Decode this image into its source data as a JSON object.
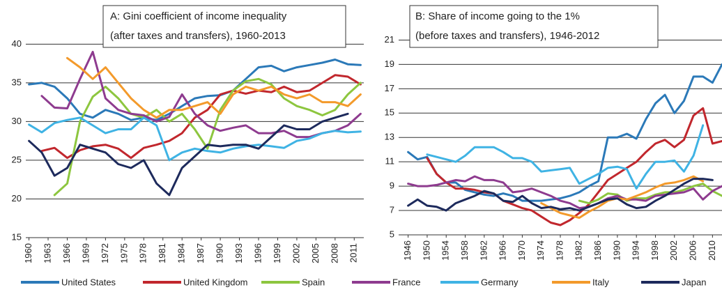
{
  "chart_data": [
    {
      "type": "line",
      "title": [
        "A: Gini coefficient of income inequality",
        "(after taxes and transfers), 1960-2013"
      ],
      "x": [
        1960,
        1962,
        1964,
        1966,
        1968,
        1970,
        1972,
        1974,
        1976,
        1978,
        1980,
        1982,
        1984,
        1986,
        1988,
        1990,
        1992,
        1994,
        1996,
        1998,
        2000,
        2002,
        2004,
        2006,
        2008,
        2010,
        2012
      ],
      "xlim": [
        1959.5,
        2012.5
      ],
      "xticks": [
        1960,
        1963,
        1966,
        1969,
        1972,
        1975,
        1978,
        1981,
        1984,
        1987,
        1990,
        1993,
        1996,
        1999,
        2002,
        2005,
        2008,
        2011
      ],
      "ylim": [
        15,
        43
      ],
      "yticks": [
        15,
        20,
        25,
        30,
        35,
        40
      ],
      "grid": true,
      "series": [
        {
          "name": "United States",
          "color": "#2b79b8",
          "values": [
            34.8,
            35,
            34.5,
            33,
            31,
            30.5,
            31.5,
            31,
            30.2,
            30.5,
            30.2,
            31,
            32,
            33,
            33.3,
            33.4,
            34,
            35.5,
            37,
            37.2,
            36.5,
            37,
            37.3,
            37.6,
            38,
            37.4,
            37.3
          ]
        },
        {
          "name": "United Kingdom",
          "color": "#c1272d",
          "values": [
            null,
            26.2,
            26.6,
            25.3,
            26.3,
            26.8,
            27,
            26.5,
            25.3,
            26.6,
            27,
            27.5,
            28.5,
            30.5,
            31.5,
            33.5,
            34,
            33.6,
            34,
            33.8,
            34.5,
            33.8,
            34,
            35,
            36,
            35.8,
            34.8
          ]
        },
        {
          "name": "Spain",
          "color": "#8dc63f",
          "values": [
            null,
            null,
            20.5,
            22,
            30,
            33.2,
            34.5,
            33,
            31,
            30.5,
            31.5,
            30,
            31,
            29,
            26.5,
            31.5,
            34,
            35.2,
            35.5,
            34.8,
            33,
            32,
            31.5,
            30.8,
            31.5,
            33.5,
            35
          ]
        },
        {
          "name": "France",
          "color": "#8e3b8f",
          "values": [
            null,
            33.3,
            31.8,
            31.7,
            35.5,
            39,
            33,
            31.5,
            31,
            30.8,
            30,
            30.6,
            33.5,
            31,
            29.5,
            28.8,
            29.2,
            29.5,
            28.5,
            28.5,
            28.8,
            28,
            28,
            28.5,
            28.8,
            29.5,
            31
          ]
        },
        {
          "name": "Germany",
          "color": "#3fb3e4",
          "values": [
            29.6,
            28.6,
            29.8,
            30.2,
            30.5,
            29.5,
            28.5,
            29,
            29,
            30.5,
            29.5,
            25,
            26,
            26.5,
            26.2,
            26,
            26.5,
            26.8,
            27,
            26.8,
            26.6,
            27.5,
            27.8,
            28.5,
            28.8,
            28.6,
            28.7
          ]
        },
        {
          "name": "Italy",
          "color": "#f39a2b",
          "values": [
            null,
            null,
            null,
            38.2,
            37,
            35.5,
            37,
            35,
            33,
            31.5,
            30.5,
            31.5,
            31.5,
            32,
            32.5,
            31,
            33.5,
            34.5,
            34,
            34.5,
            33.5,
            33,
            33.5,
            32.5,
            32.5,
            32,
            33.5
          ]
        },
        {
          "name": "Japan",
          "color": "#1d2a5c",
          "values": [
            27.5,
            26,
            23,
            24,
            27,
            26.5,
            26,
            24.5,
            24,
            25,
            22,
            20.5,
            24,
            25.5,
            27,
            26.8,
            27,
            27,
            26.5,
            28,
            29.5,
            29,
            29,
            30,
            30.5,
            31,
            null
          ]
        }
      ]
    },
    {
      "type": "line",
      "title": [
        "B: Share of income going to the 1%",
        "(before taxes and transfers), 1946-2012"
      ],
      "x": [
        1946,
        1948,
        1950,
        1952,
        1954,
        1956,
        1958,
        1960,
        1962,
        1964,
        1966,
        1968,
        1970,
        1972,
        1974,
        1976,
        1978,
        1980,
        1982,
        1984,
        1986,
        1988,
        1990,
        1992,
        1994,
        1996,
        1998,
        2000,
        2002,
        2004,
        2006,
        2008,
        2010,
        2012
      ],
      "xlim": [
        1944,
        2012
      ],
      "xticks": [
        1946,
        1950,
        1954,
        1958,
        1962,
        1966,
        1970,
        1974,
        1978,
        1982,
        1986,
        1990,
        1994,
        1998,
        2002,
        2006,
        2010
      ],
      "ylim": [
        5,
        22
      ],
      "yticks": [
        5,
        7,
        9,
        11,
        13,
        15,
        17,
        19,
        21
      ],
      "grid": true,
      "series": [
        {
          "color": "#2b79b8",
          "values": [
            11.8,
            11.2,
            11.4,
            10,
            9.3,
            9.3,
            8.7,
            8.5,
            8.3,
            8.2,
            8.4,
            8.2,
            7.8,
            7.8,
            7.8,
            7.9,
            8,
            8.2,
            8.5,
            9,
            9.4,
            13,
            13,
            13.3,
            12.9,
            14.5,
            15.8,
            16.5,
            15,
            16,
            18,
            18,
            17.5,
            19
          ]
        },
        {
          "color": "#c1272d",
          "values": [
            null,
            null,
            11.3,
            10,
            9.3,
            8.8,
            8.8,
            8.7,
            8.5,
            8.4,
            7.8,
            7.5,
            7.2,
            7,
            6.5,
            6,
            5.8,
            6.2,
            6.8,
            7.5,
            8.5,
            9.5,
            10,
            10.5,
            11,
            11.8,
            12.5,
            12.8,
            12.2,
            12.8,
            14.8,
            15.4,
            12.5,
            12.7
          ]
        },
        {
          "color": "#8dc63f",
          "values": [
            null,
            null,
            null,
            null,
            null,
            null,
            null,
            null,
            null,
            null,
            null,
            null,
            null,
            null,
            null,
            null,
            null,
            null,
            7.8,
            7.6,
            7.9,
            8.4,
            8.3,
            7.8,
            8,
            8,
            8.3,
            8.5,
            8.5,
            8.7,
            9,
            9.2,
            8.6,
            8.2
          ]
        },
        {
          "color": "#8e3b8f",
          "values": [
            9.2,
            9,
            9,
            9.1,
            9.3,
            9.5,
            9.4,
            9.8,
            9.5,
            9.5,
            9.3,
            8.5,
            8.6,
            8.8,
            8.5,
            8.2,
            7.8,
            7.6,
            7.2,
            7.3,
            7.6,
            8,
            8.2,
            7.9,
            7.9,
            7.8,
            8.2,
            8.3,
            8.4,
            8.5,
            8.8,
            7.9,
            8.6,
            9
          ]
        },
        {
          "color": "#3fb3e4",
          "values": [
            null,
            null,
            11.6,
            11.4,
            11.2,
            11,
            11.5,
            12.2,
            12.2,
            12.2,
            11.8,
            11.3,
            11.3,
            11,
            10.2,
            10.3,
            10.4,
            10.5,
            9.2,
            9.6,
            10,
            10.5,
            10.6,
            10.4,
            8.8,
            10,
            11,
            11,
            11.1,
            10.2,
            11.5,
            14,
            null,
            null
          ]
        },
        {
          "color": "#f39a2b",
          "values": [
            null,
            null,
            null,
            null,
            null,
            null,
            null,
            null,
            null,
            null,
            null,
            null,
            null,
            null,
            7.6,
            7.2,
            6.8,
            6.6,
            6.4,
            6.9,
            7.3,
            7.8,
            8,
            7.9,
            8.2,
            8.5,
            8.9,
            9.2,
            9.3,
            9.5,
            9.8,
            9.4,
            null,
            null
          ]
        },
        {
          "color": "#1d2a5c",
          "values": [
            7.4,
            7.9,
            7.4,
            7.3,
            7,
            7.6,
            7.9,
            8.2,
            8.6,
            8.4,
            7.8,
            7.7,
            8.2,
            7.6,
            7.2,
            7.3,
            7.1,
            7.2,
            7,
            7.3,
            7.6,
            7.9,
            8,
            7.5,
            7.2,
            7.3,
            7.8,
            8.2,
            8.7,
            9.2,
            9.6,
            9.6,
            9.5,
            null
          ]
        }
      ]
    }
  ]
}
